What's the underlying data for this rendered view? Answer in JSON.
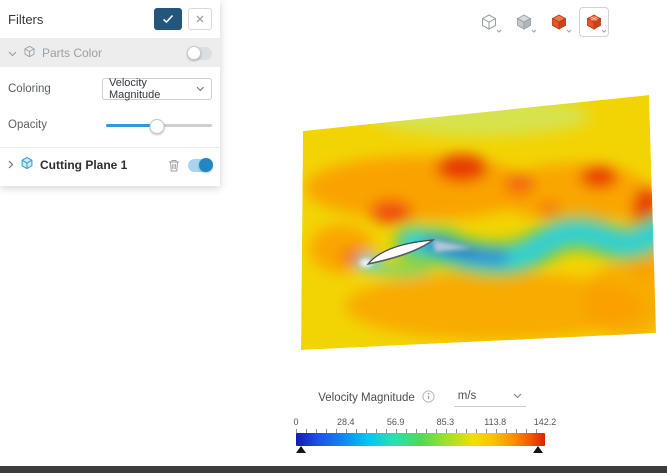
{
  "panel": {
    "title": "Filters",
    "parts_color": {
      "label": "Parts Color",
      "enabled": false
    },
    "coloring": {
      "label": "Coloring",
      "value": "Velocity Magnitude"
    },
    "opacity": {
      "label": "Opacity",
      "value_pct": 48
    },
    "cutting_plane": {
      "label": "Cutting Plane 1",
      "enabled": true
    }
  },
  "toolbar": {
    "icons": [
      {
        "name": "view-cube-outline-icon",
        "active": false
      },
      {
        "name": "mesh-cube-icon",
        "active": false
      },
      {
        "name": "results-cube-icon",
        "active": false
      },
      {
        "name": "results-cube-icon-selected",
        "active": true
      }
    ]
  },
  "legend": {
    "title": "Velocity Magnitude",
    "unit": "m/s",
    "ticks": [
      "0",
      "28.4",
      "56.9",
      "85.3",
      "113.8",
      "142.2"
    ],
    "colormap": [
      "#151bb0 0%",
      "#1e51e8 9%",
      "#1188f0 19%",
      "#00c8f0 29%",
      "#26e0b4 39%",
      "#52d858 50%",
      "#a4e028 61%",
      "#f0e000 71%",
      "#f7c500 79%",
      "#fb9100 87%",
      "#f25a00 94%",
      "#d92400 100%"
    ],
    "accent": "#2e9bd6"
  }
}
